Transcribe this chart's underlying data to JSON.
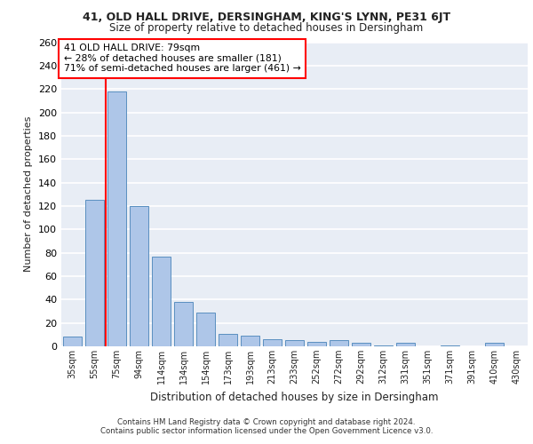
{
  "title_line1": "41, OLD HALL DRIVE, DERSINGHAM, KING'S LYNN, PE31 6JT",
  "title_line2": "Size of property relative to detached houses in Dersingham",
  "xlabel": "Distribution of detached houses by size in Dersingham",
  "ylabel": "Number of detached properties",
  "categories": [
    "35sqm",
    "55sqm",
    "75sqm",
    "94sqm",
    "114sqm",
    "134sqm",
    "154sqm",
    "173sqm",
    "193sqm",
    "213sqm",
    "233sqm",
    "252sqm",
    "272sqm",
    "292sqm",
    "312sqm",
    "331sqm",
    "351sqm",
    "371sqm",
    "391sqm",
    "410sqm",
    "430sqm"
  ],
  "values": [
    8,
    125,
    218,
    120,
    77,
    38,
    29,
    11,
    9,
    6,
    5,
    4,
    5,
    3,
    1,
    3,
    0,
    1,
    0,
    3,
    0
  ],
  "bar_color": "#aec6e8",
  "bar_edge_color": "#5a8fc0",
  "background_color": "#e8edf5",
  "grid_color": "#ffffff",
  "annotation_line1": "41 OLD HALL DRIVE: 79sqm",
  "annotation_line2": "← 28% of detached houses are smaller (181)",
  "annotation_line3": "71% of semi-detached houses are larger (461) →",
  "redline_x": 1.5,
  "ylim": [
    0,
    260
  ],
  "yticks": [
    0,
    20,
    40,
    60,
    80,
    100,
    120,
    140,
    160,
    180,
    200,
    220,
    240,
    260
  ],
  "footer_line1": "Contains HM Land Registry data © Crown copyright and database right 2024.",
  "footer_line2": "Contains public sector information licensed under the Open Government Licence v3.0."
}
